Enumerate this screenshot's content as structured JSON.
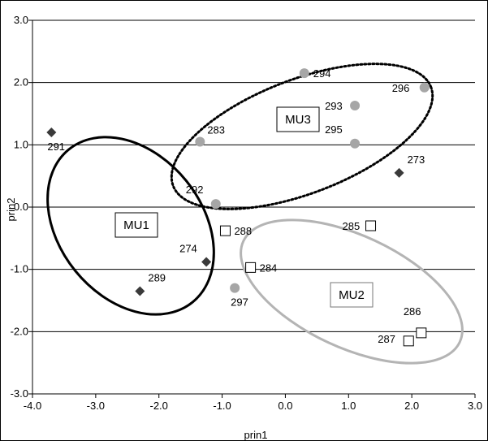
{
  "chart_data": {
    "type": "scatter",
    "xlabel": "prin1",
    "ylabel": "prin2",
    "xlim": [
      -4.0,
      3.0
    ],
    "ylim": [
      -3.0,
      3.0
    ],
    "x_ticks": [
      "-4.0",
      "-3.0",
      "-2.0",
      "-1.0",
      "0.0",
      "1.0",
      "2.0",
      "3.0"
    ],
    "y_ticks": [
      "-3.0",
      "-2.0",
      "-1.0",
      "0.0",
      "1.0",
      "2.0",
      "3.0"
    ],
    "grid": "horizontal",
    "colors": {
      "diamond": "#3a3a3a",
      "circle": "#a6a6a6",
      "square_fill": "#ffffff",
      "square_stroke": "#000000",
      "grid": "#000000",
      "mu3": "#000000",
      "mu2": "#b4b4b4"
    },
    "series": [
      {
        "marker": "diamond",
        "points": [
          {
            "label": "291",
            "x": -3.7,
            "y": 1.2
          },
          {
            "label": "289",
            "x": -2.3,
            "y": -1.35
          },
          {
            "label": "274",
            "x": -1.25,
            "y": -0.88
          },
          {
            "label": "273",
            "x": 1.8,
            "y": 0.55
          }
        ]
      },
      {
        "marker": "circle",
        "points": [
          {
            "label": "283",
            "x": -1.35,
            "y": 1.05
          },
          {
            "label": "292",
            "x": -1.1,
            "y": 0.05
          },
          {
            "label": "297",
            "x": -0.8,
            "y": -1.3
          },
          {
            "label": "294",
            "x": 0.3,
            "y": 2.15
          },
          {
            "label": "293",
            "x": 1.1,
            "y": 1.63
          },
          {
            "label": "295",
            "x": 1.1,
            "y": 1.02
          },
          {
            "label": "296",
            "x": 2.2,
            "y": 1.92
          }
        ]
      },
      {
        "marker": "square",
        "points": [
          {
            "label": "288",
            "x": -0.95,
            "y": -0.38
          },
          {
            "label": "284",
            "x": -0.55,
            "y": -0.97
          },
          {
            "label": "285",
            "x": 1.35,
            "y": -0.3
          },
          {
            "label": "286",
            "x": 2.15,
            "y": -2.02
          },
          {
            "label": "287",
            "x": 1.95,
            "y": -2.15
          }
        ]
      }
    ],
    "groups": [
      {
        "name": "MU1",
        "style": "solid",
        "color": "#000000"
      },
      {
        "name": "MU2",
        "style": "solid",
        "color": "#b4b4b4"
      },
      {
        "name": "MU3",
        "style": "dotted",
        "color": "#000000"
      }
    ]
  }
}
